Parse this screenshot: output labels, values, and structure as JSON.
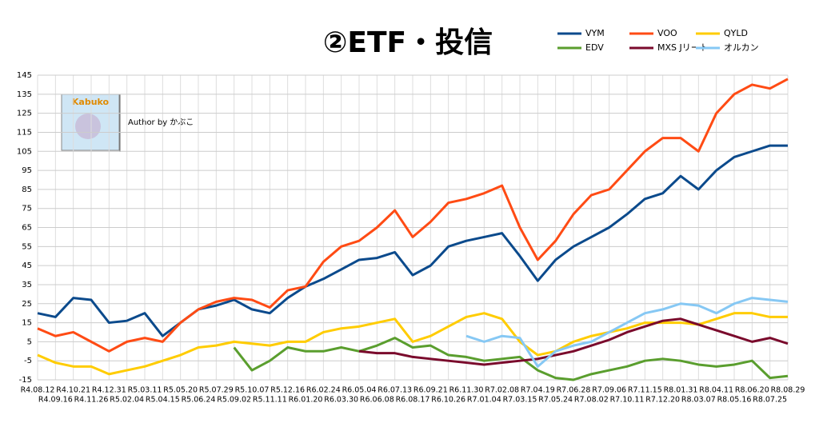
{
  "chart_data": {
    "type": "line",
    "title": "②ETF・投信",
    "annotations": {
      "logo": "Kabuko",
      "author": "Author by かぶこ"
    },
    "categories": [
      "R4.08.12",
      "R4.09.16",
      "R4.10.21",
      "R4.11.26",
      "R4.12.31",
      "R5.02.04",
      "R5.03.11",
      "R5.04.15",
      "R5.05.20",
      "R5.06.24",
      "R5.07.29",
      "R5.09.02",
      "R5.10.07",
      "R5.11.11",
      "R5.12.16",
      "R6.01.20",
      "R6.02.24",
      "R6.03.30",
      "R6.05.04",
      "R6.06.08",
      "R6.07.13",
      "R6.08.17",
      "R6.09.21",
      "R6.10.26",
      "R6.11.30",
      "R7.01.04",
      "R7.02.08",
      "R7.03.15",
      "R7.04.19",
      "R7.05.24",
      "R7.06.28",
      "R7.08.02",
      "R7.09.06",
      "R7.10.11",
      "R7.11.15",
      "R7.12.20",
      "R8.01.31",
      "R8.03.07",
      "R8.04.11",
      "R8.05.16",
      "R8.06.20",
      "R8.07.25",
      "R8.08.29"
    ],
    "series": [
      {
        "name": "VYM",
        "color": "#0b4a8c",
        "values": [
          20,
          18,
          28,
          27,
          15,
          16,
          20,
          8,
          15,
          22,
          24,
          27,
          22,
          20,
          28,
          34,
          38,
          43,
          48,
          49,
          52,
          40,
          45,
          55,
          58,
          60,
          62,
          50,
          37,
          48,
          55,
          60,
          65,
          72,
          80,
          83,
          92,
          85,
          95,
          102,
          105,
          108,
          108
        ]
      },
      {
        "name": "VOO",
        "color": "#ff4b14",
        "values": [
          12,
          8,
          10,
          5,
          0,
          5,
          7,
          5,
          15,
          22,
          26,
          28,
          27,
          23,
          32,
          34,
          47,
          55,
          58,
          65,
          74,
          60,
          68,
          78,
          80,
          83,
          87,
          65,
          48,
          58,
          72,
          82,
          85,
          95,
          105,
          112,
          112,
          105,
          125,
          135,
          140,
          138,
          143
        ]
      },
      {
        "name": "QYLD",
        "color": "#ffcc00",
        "values": [
          -2,
          -6,
          -8,
          -8,
          -12,
          -10,
          -8,
          -5,
          -2,
          2,
          3,
          5,
          4,
          3,
          5,
          5,
          10,
          12,
          13,
          15,
          17,
          5,
          8,
          13,
          18,
          20,
          17,
          5,
          -2,
          0,
          5,
          8,
          10,
          12,
          15,
          15,
          15,
          14,
          17,
          20,
          20,
          18,
          18
        ]
      },
      {
        "name": "EDV",
        "color": "#5a9e2e",
        "values": [
          null,
          null,
          null,
          null,
          null,
          null,
          null,
          null,
          null,
          null,
          null,
          2,
          -10,
          -5,
          2,
          0,
          0,
          2,
          0,
          3,
          7,
          2,
          3,
          -2,
          -3,
          -5,
          -4,
          -3,
          -10,
          -14,
          -15,
          -12,
          -10,
          -8,
          -5,
          -4,
          -5,
          -7,
          -8,
          -7,
          -5,
          -14,
          -13
        ]
      },
      {
        "name": "MXS Jリート",
        "color": "#7a0a2c",
        "values": [
          null,
          null,
          null,
          null,
          null,
          null,
          null,
          null,
          null,
          null,
          null,
          null,
          null,
          null,
          null,
          null,
          null,
          null,
          0,
          -1,
          -1,
          -3,
          -4,
          -5,
          -6,
          -7,
          -6,
          -5,
          -4,
          -2,
          0,
          3,
          6,
          10,
          13,
          16,
          17,
          14,
          11,
          8,
          5,
          7,
          4
        ]
      },
      {
        "name": "オルカン",
        "color": "#86c8f4",
        "values": [
          null,
          null,
          null,
          null,
          null,
          null,
          null,
          null,
          null,
          null,
          null,
          null,
          null,
          null,
          null,
          null,
          null,
          null,
          null,
          null,
          null,
          null,
          null,
          null,
          8,
          5,
          8,
          7,
          -8,
          0,
          3,
          5,
          10,
          15,
          20,
          22,
          25,
          24,
          20,
          25,
          28,
          27,
          26
        ]
      }
    ],
    "ylim": [
      -15,
      145
    ],
    "yticks": [
      -15,
      -5,
      5,
      15,
      25,
      35,
      45,
      55,
      65,
      75,
      85,
      95,
      105,
      115,
      125,
      135,
      145
    ],
    "grid": true
  }
}
